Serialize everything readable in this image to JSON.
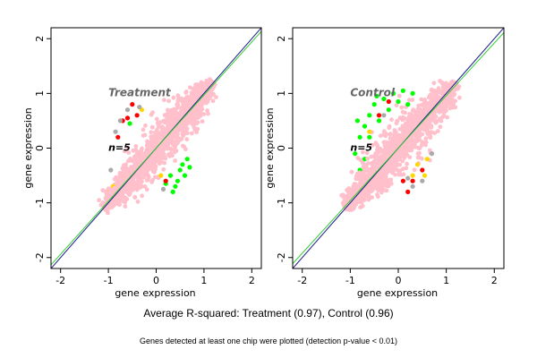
{
  "chart_data": [
    {
      "type": "scatter",
      "title": "Treatment",
      "n_label": "n=5",
      "xlabel": "gene expression",
      "ylabel": "gene expression",
      "xlim": [
        -2.2,
        2.2
      ],
      "ylim": [
        -2.2,
        2.2
      ],
      "xticks": [
        -2,
        -1,
        0,
        1,
        2
      ],
      "yticks": [
        -2,
        -1,
        0,
        1,
        2
      ],
      "fit_lines": [
        {
          "color": "#1a1a8c",
          "slope": 1.0,
          "intercept": 0.0
        },
        {
          "color": "#33cc33",
          "slope": 0.97,
          "intercept": 0.0
        }
      ],
      "series": [
        {
          "color": "#ffc0cb",
          "shape": "dense cloud along diagonal",
          "x_range": [
            -1.1,
            1.2
          ],
          "spread": 0.25
        },
        {
          "color": "#00ff00",
          "points": [
            [
              0.5,
              -0.4
            ],
            [
              0.6,
              -0.5
            ],
            [
              0.45,
              -0.6
            ],
            [
              0.4,
              -0.7
            ],
            [
              0.55,
              -0.3
            ],
            [
              0.3,
              -0.5
            ],
            [
              0.65,
              -0.2
            ],
            [
              0.35,
              -0.8
            ],
            [
              0.2,
              -0.65
            ],
            [
              -0.55,
              0.45
            ],
            [
              0.7,
              -0.35
            ]
          ]
        },
        {
          "color": "#ff0000",
          "points": [
            [
              -0.7,
              0.5
            ],
            [
              -0.6,
              0.55
            ],
            [
              -0.4,
              0.6
            ],
            [
              -0.5,
              0.8
            ],
            [
              0.2,
              -0.6
            ],
            [
              -0.8,
              0.2
            ]
          ]
        },
        {
          "color": "#ffd700",
          "points": [
            [
              -0.9,
              -0.7
            ],
            [
              -0.7,
              -0.5
            ],
            [
              -0.3,
              0.7
            ],
            [
              0.1,
              -0.5
            ],
            [
              -1.0,
              -0.8
            ]
          ]
        },
        {
          "color": "#aaaaaa",
          "points": [
            [
              -0.75,
              0.5
            ],
            [
              -0.6,
              0.7
            ],
            [
              -0.85,
              0.3
            ],
            [
              -0.95,
              -0.4
            ],
            [
              -0.35,
              0.75
            ],
            [
              0.15,
              -0.75
            ]
          ]
        }
      ]
    },
    {
      "type": "scatter",
      "title": "Control",
      "n_label": "n=5",
      "xlabel": "gene expression",
      "ylabel": "gene expression",
      "xlim": [
        -2.2,
        2.2
      ],
      "ylim": [
        -2.2,
        2.2
      ],
      "xticks": [
        -2,
        -1,
        0,
        1,
        2
      ],
      "yticks": [
        -2,
        -1,
        0,
        1,
        2
      ],
      "fit_lines": [
        {
          "color": "#1a1a8c",
          "slope": 1.0,
          "intercept": 0.0
        },
        {
          "color": "#33cc33",
          "slope": 0.96,
          "intercept": 0.0
        }
      ],
      "series": [
        {
          "color": "#ffc0cb",
          "shape": "dense cloud along diagonal",
          "x_range": [
            -1.1,
            1.2
          ],
          "spread": 0.28
        },
        {
          "color": "#00ff00",
          "points": [
            [
              -0.8,
              0.2
            ],
            [
              -0.7,
              0.4
            ],
            [
              -0.6,
              0.6
            ],
            [
              -0.5,
              0.8
            ],
            [
              -0.3,
              0.9
            ],
            [
              -0.1,
              1.0
            ],
            [
              0.1,
              1.05
            ],
            [
              0.3,
              1.0
            ],
            [
              -0.9,
              -0.1
            ],
            [
              -0.8,
              -0.4
            ],
            [
              -0.6,
              0.2
            ],
            [
              -0.4,
              0.5
            ],
            [
              -0.2,
              0.7
            ],
            [
              0.2,
              0.8
            ],
            [
              -0.7,
              -0.2
            ],
            [
              -0.85,
              0.5
            ],
            [
              0.0,
              0.85
            ],
            [
              -0.45,
              0.95
            ]
          ]
        },
        {
          "color": "#ff0000",
          "points": [
            [
              -0.4,
              0.6
            ],
            [
              -0.2,
              0.85
            ],
            [
              0.3,
              -0.6
            ],
            [
              0.5,
              -0.4
            ],
            [
              0.2,
              -0.8
            ],
            [
              0.1,
              -0.6
            ]
          ]
        },
        {
          "color": "#ffd700",
          "points": [
            [
              0.4,
              -0.3
            ],
            [
              0.6,
              -0.2
            ],
            [
              0.3,
              -0.5
            ],
            [
              -0.6,
              0.3
            ],
            [
              0.55,
              -0.5
            ]
          ]
        },
        {
          "color": "#aaaaaa",
          "points": [
            [
              0.5,
              -0.6
            ],
            [
              0.3,
              -0.7
            ],
            [
              0.7,
              -0.1
            ],
            [
              -0.3,
              0.6
            ],
            [
              0.2,
              -0.55
            ]
          ]
        }
      ]
    }
  ],
  "caption": "Average R-squared: Treatment (0.97), Control (0.96)",
  "footnote": "Genes detected at least one chip were plotted (detection p-value < 0.01)"
}
